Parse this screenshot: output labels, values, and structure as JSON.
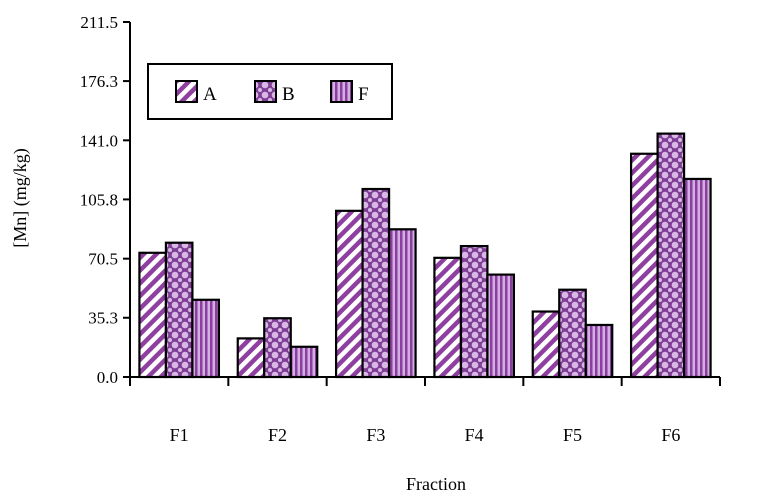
{
  "chart_data": {
    "type": "bar",
    "xlabel": "Fraction",
    "ylabel": "[Mn] (mg/kg)",
    "ylim": [
      0,
      211.5
    ],
    "yticks": [
      "0.0",
      "35.3",
      "70.5",
      "105.8",
      "141.0",
      "176.3",
      "211.5"
    ],
    "categories": [
      "F1",
      "F2",
      "F3",
      "F4",
      "F5",
      "F6"
    ],
    "series": [
      {
        "name": "A",
        "values": [
          74,
          23,
          99,
          71,
          39,
          133
        ],
        "pattern": "diagonal",
        "color": "#c9a0dc"
      },
      {
        "name": "B",
        "values": [
          80,
          35,
          112,
          78,
          52,
          145
        ],
        "pattern": "dots",
        "color": "#c9a0dc"
      },
      {
        "name": "F",
        "values": [
          46,
          18,
          88,
          61,
          31,
          118
        ],
        "pattern": "vertical",
        "color": "#c9a0dc"
      }
    ],
    "legend": "top-left",
    "grid": false
  }
}
